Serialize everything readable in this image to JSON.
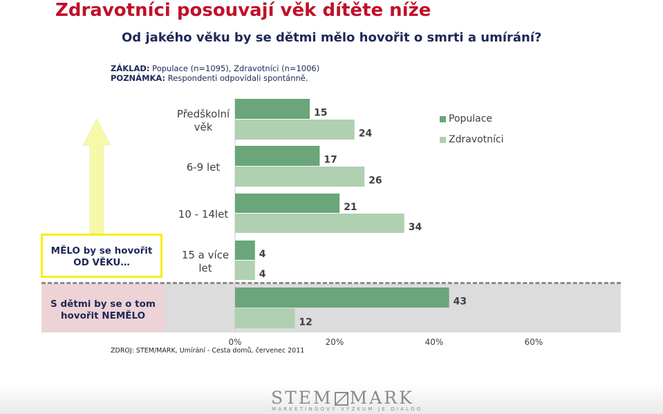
{
  "title": "Zdravotníci posouvají věk dítěte níže",
  "question": "Od jakého věku by se dětmi mělo hovořit o smrti a umírání?",
  "note": {
    "zaklad_label": "ZÁKLAD:",
    "zaklad_text": " Populace (n=1095), Zdravotníci (n=1006)",
    "poznamka_label": "POZNÁMKA:",
    "poznamka_text": " Respondenti odpovídali spontánně."
  },
  "yes_box_label": "MĚLO by se hovořit OD VĚKU…",
  "no_box_label": "S dětmi by se o tom hovořit NEMĚLO",
  "source": "ZDROJ: STEM/MARK, Umírání - Cesta domů, červenec 2011",
  "logo": {
    "name": "STEM MARK",
    "tagline": "MARKETINGOVÝ VÝZKUM JE DIALOG"
  },
  "colors": {
    "populace": "#6aa679",
    "zdravotnici": "#afd0b1",
    "arrow": "#f7f9a8",
    "title": "#c0102a"
  },
  "chart_data": {
    "type": "bar",
    "orientation": "horizontal",
    "categories": [
      "Předškolní věk",
      "6-9 let",
      "10 - 14let",
      "15 a více let",
      "S dětmi by se o tom hovořit NEMĚLO"
    ],
    "series": [
      {
        "name": "Populace",
        "values": [
          15,
          17,
          21,
          4,
          43
        ]
      },
      {
        "name": "Zdravotníci",
        "values": [
          24,
          26,
          34,
          4,
          12
        ]
      }
    ],
    "xlim": [
      0,
      60
    ],
    "x_ticks": [
      "0%",
      "20%",
      "40%",
      "60%"
    ],
    "legend_position": "top-right",
    "grid": false
  }
}
